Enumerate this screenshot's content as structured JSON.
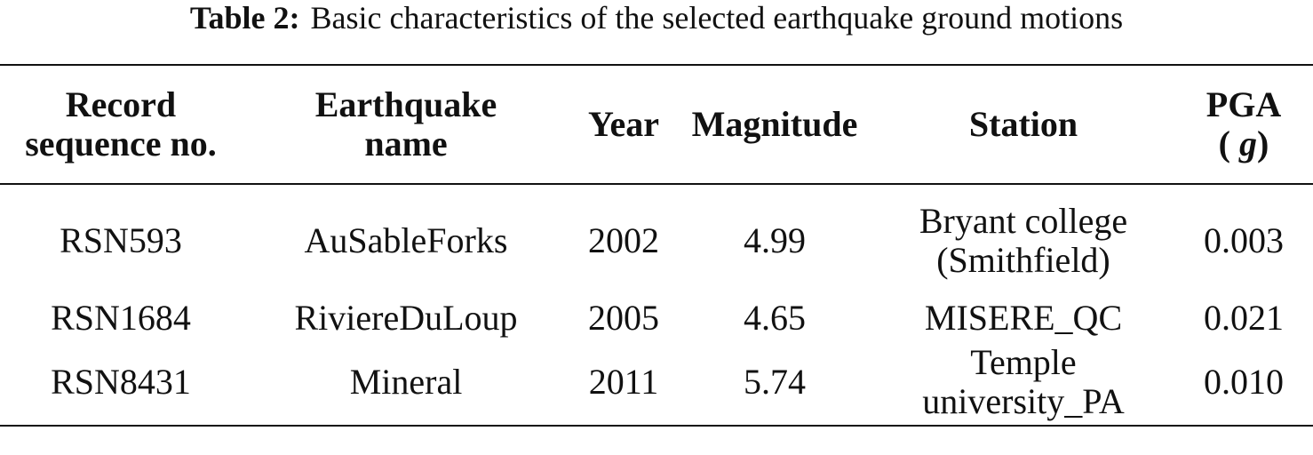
{
  "caption": {
    "label": "Table 2:",
    "text": "Basic characteristics of the selected earthquake ground motions"
  },
  "table": {
    "headers": [
      "Record\nsequence no.",
      "Earthquake\nname",
      "Year",
      "Magnitude",
      "Station",
      "PGA"
    ],
    "pga_unit_open": "( ",
    "pga_unit": "g",
    "pga_unit_close": ")",
    "rows": [
      [
        "RSN593",
        "AuSableForks",
        "2002",
        "4.99",
        "Bryant college\n(Smithfield)",
        "0.003"
      ],
      [
        "RSN1684",
        "RiviereDuLoup",
        "2005",
        "4.65",
        "MISERE_QC",
        "0.021"
      ],
      [
        "RSN8431",
        "Mineral",
        "2011",
        "5.74",
        "Temple\nuniversity_PA",
        "0.010"
      ]
    ]
  }
}
